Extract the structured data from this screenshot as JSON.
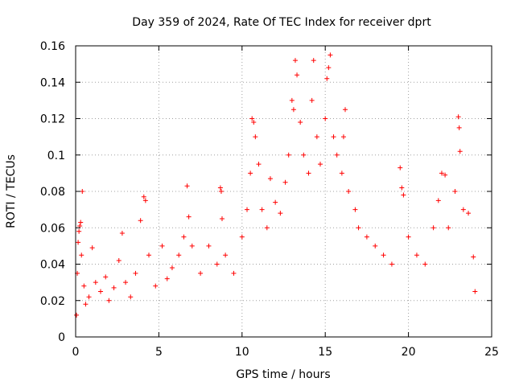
{
  "chart_data": {
    "type": "scatter",
    "title": "Day 359 of 2024, Rate Of TEC Index for receiver dprt",
    "xlabel": "GPS time / hours",
    "ylabel": "ROTI / TECUs",
    "xlim": [
      0,
      25
    ],
    "ylim": [
      0,
      0.16
    ],
    "xticks": [
      0,
      5,
      10,
      15,
      20,
      25
    ],
    "xtick_labels": [
      "0",
      "5",
      "10",
      "15",
      "20",
      "25"
    ],
    "yticks": [
      0,
      0.02,
      0.04,
      0.06,
      0.08,
      0.1,
      0.12,
      0.14,
      0.16
    ],
    "ytick_labels": [
      "0",
      "0.02",
      "0.04",
      "0.06",
      "0.08",
      "0.1",
      "0.12",
      "0.14",
      "0.16"
    ],
    "grid": true,
    "marker": "plus",
    "color": "#ff0000",
    "series": [
      {
        "name": "ROTI",
        "points": [
          [
            0.05,
            0.012
          ],
          [
            0.1,
            0.035
          ],
          [
            0.15,
            0.052
          ],
          [
            0.2,
            0.058
          ],
          [
            0.25,
            0.061
          ],
          [
            0.3,
            0.063
          ],
          [
            0.35,
            0.045
          ],
          [
            0.4,
            0.08
          ],
          [
            0.5,
            0.028
          ],
          [
            0.6,
            0.018
          ],
          [
            0.8,
            0.022
          ],
          [
            1.0,
            0.049
          ],
          [
            1.2,
            0.03
          ],
          [
            1.5,
            0.025
          ],
          [
            1.8,
            0.033
          ],
          [
            2.0,
            0.02
          ],
          [
            2.3,
            0.027
          ],
          [
            2.6,
            0.042
          ],
          [
            2.8,
            0.057
          ],
          [
            3.0,
            0.03
          ],
          [
            3.3,
            0.022
          ],
          [
            3.6,
            0.035
          ],
          [
            3.9,
            0.064
          ],
          [
            4.1,
            0.077
          ],
          [
            4.2,
            0.075
          ],
          [
            4.4,
            0.045
          ],
          [
            4.8,
            0.028
          ],
          [
            5.2,
            0.05
          ],
          [
            5.5,
            0.032
          ],
          [
            5.8,
            0.038
          ],
          [
            6.2,
            0.045
          ],
          [
            6.5,
            0.055
          ],
          [
            6.7,
            0.083
          ],
          [
            6.8,
            0.066
          ],
          [
            7.0,
            0.05
          ],
          [
            7.5,
            0.035
          ],
          [
            8.0,
            0.05
          ],
          [
            8.5,
            0.04
          ],
          [
            8.7,
            0.082
          ],
          [
            8.75,
            0.08
          ],
          [
            8.8,
            0.065
          ],
          [
            9.0,
            0.045
          ],
          [
            9.5,
            0.035
          ],
          [
            10.0,
            0.055
          ],
          [
            10.3,
            0.07
          ],
          [
            10.5,
            0.09
          ],
          [
            10.6,
            0.12
          ],
          [
            10.7,
            0.118
          ],
          [
            10.8,
            0.11
          ],
          [
            11.0,
            0.095
          ],
          [
            11.2,
            0.07
          ],
          [
            11.5,
            0.06
          ],
          [
            11.7,
            0.087
          ],
          [
            12.0,
            0.074
          ],
          [
            12.3,
            0.068
          ],
          [
            12.6,
            0.085
          ],
          [
            12.8,
            0.1
          ],
          [
            13.0,
            0.13
          ],
          [
            13.1,
            0.125
          ],
          [
            13.2,
            0.152
          ],
          [
            13.3,
            0.144
          ],
          [
            13.5,
            0.118
          ],
          [
            13.7,
            0.1
          ],
          [
            14.0,
            0.09
          ],
          [
            14.2,
            0.13
          ],
          [
            14.3,
            0.152
          ],
          [
            14.5,
            0.11
          ],
          [
            14.7,
            0.095
          ],
          [
            15.0,
            0.12
          ],
          [
            15.1,
            0.142
          ],
          [
            15.2,
            0.148
          ],
          [
            15.3,
            0.155
          ],
          [
            15.5,
            0.11
          ],
          [
            15.7,
            0.1
          ],
          [
            16.0,
            0.09
          ],
          [
            16.1,
            0.11
          ],
          [
            16.2,
            0.125
          ],
          [
            16.4,
            0.08
          ],
          [
            16.8,
            0.07
          ],
          [
            17.0,
            0.06
          ],
          [
            17.5,
            0.055
          ],
          [
            18.0,
            0.05
          ],
          [
            18.5,
            0.045
          ],
          [
            19.0,
            0.04
          ],
          [
            19.5,
            0.093
          ],
          [
            19.6,
            0.082
          ],
          [
            19.7,
            0.078
          ],
          [
            20.0,
            0.055
          ],
          [
            20.5,
            0.045
          ],
          [
            21.0,
            0.04
          ],
          [
            21.5,
            0.06
          ],
          [
            21.8,
            0.075
          ],
          [
            22.0,
            0.09
          ],
          [
            22.2,
            0.089
          ],
          [
            22.4,
            0.06
          ],
          [
            22.8,
            0.08
          ],
          [
            23.0,
            0.121
          ],
          [
            23.05,
            0.115
          ],
          [
            23.1,
            0.102
          ],
          [
            23.3,
            0.07
          ],
          [
            23.6,
            0.068
          ],
          [
            23.9,
            0.044
          ],
          [
            24.0,
            0.025
          ]
        ]
      }
    ]
  }
}
